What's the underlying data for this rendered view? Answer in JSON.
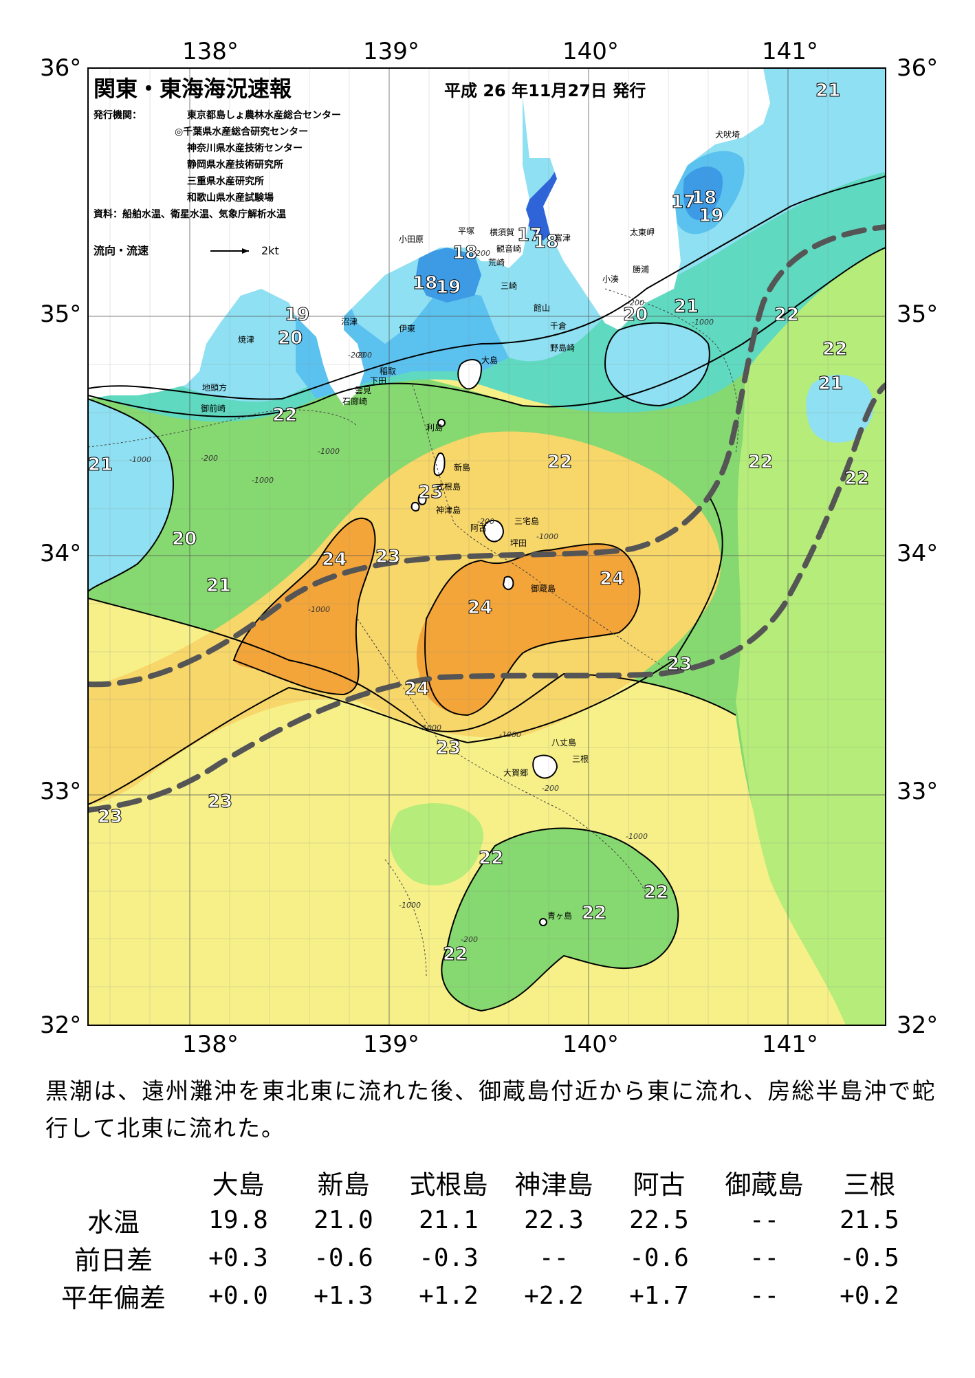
{
  "map": {
    "title": "関東・東海海況速報",
    "date": "平成 26 年11月27日 発行",
    "issuers_label": "発行機関：",
    "issuers": [
      "東京都島しょ農林水産総合センター",
      "◎千葉県水産総合研究センター",
      "神奈川県水産技術センター",
      "静岡県水産技術研究所",
      "三重県水産研究所",
      "和歌山県水産試験場"
    ],
    "source": "資料：船舶水温、衛星水温、気象庁解析水温",
    "flow_label": "流向・流速",
    "flow_scale": "2kt",
    "lon_labels": [
      "138°",
      "139°",
      "140°",
      "141°"
    ],
    "lat_labels": [
      "36°",
      "35°",
      "34°",
      "33°",
      "32°"
    ],
    "places": [
      "横須賀",
      "平塚",
      "小田原",
      "観音崎",
      "富津",
      "荒崎",
      "三崎",
      "館山",
      "千倉",
      "野島崎",
      "犬吠埼",
      "太東岬",
      "勝浦",
      "小湊",
      "沼津",
      "焼津",
      "伊東",
      "稲取",
      "下田",
      "石廊崎",
      "雲見",
      "地頭方",
      "御前崎",
      "大島",
      "利島",
      "新島",
      "式根島",
      "神津島",
      "三宅島",
      "阿古",
      "坪田",
      "御蔵島",
      "八丈島",
      "三根",
      "大賀郷",
      "青ヶ島"
    ],
    "isotherm_labels": [
      "17",
      "18",
      "19",
      "20",
      "21",
      "22",
      "23",
      "24"
    ],
    "depth_labels": [
      "-200",
      "-1000"
    ]
  },
  "summary": "黒潮は、遠州灘沖を東北東に流れた後、御蔵島付近から東に流れ、房総半島沖で蛇行して北東に流れた。",
  "table": {
    "stations": [
      "大島",
      "新島",
      "式根島",
      "神津島",
      "阿古",
      "御蔵島",
      "三根"
    ],
    "rows": [
      {
        "label": "水温",
        "values": [
          "19.8",
          "21.0",
          "21.1",
          "22.3",
          "22.5",
          "--",
          "21.5"
        ]
      },
      {
        "label": "前日差",
        "values": [
          "+0.3",
          "-0.6",
          "-0.3",
          "--",
          "-0.6",
          "--",
          "-0.5"
        ]
      },
      {
        "label": "平年偏差",
        "values": [
          "+0.0",
          "+1.3",
          "+1.2",
          "+2.2",
          "+1.7",
          "--",
          "+0.2"
        ]
      }
    ]
  },
  "colors": {
    "t17": "#2f63d8",
    "t18": "#3d9be6",
    "t19": "#5bc1ef",
    "t20": "#8fe0f2",
    "t21": "#5fd9c0",
    "t22": "#86d870",
    "t22b": "#b6ec7a",
    "t23": "#f7f089",
    "t23b": "#f7d66a",
    "t24": "#f3a53a",
    "kuroshio": "#555555"
  }
}
